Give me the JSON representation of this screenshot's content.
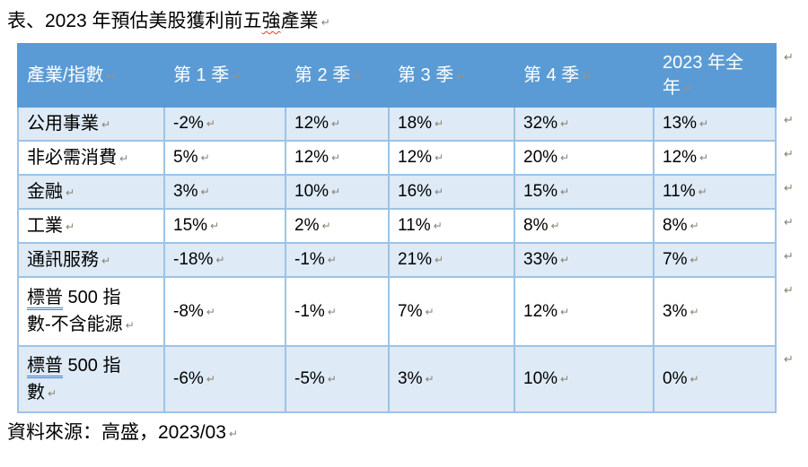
{
  "title": {
    "prefix": "表、2023 年預估美股獲利前五",
    "misspelled": "強",
    "suffix": "產業"
  },
  "marks": {
    "paragraph": "↵"
  },
  "table": {
    "headers": [
      "產業/指數",
      "第 1 季",
      "第 2 季",
      "第 3 季",
      "第 4 季",
      "2023 年全\n年"
    ],
    "rows": [
      {
        "label": "公用事業",
        "values": [
          "-2%",
          "12%",
          "18%",
          "32%",
          "13%"
        ]
      },
      {
        "label": "非必需消費",
        "values": [
          "5%",
          "12%",
          "12%",
          "20%",
          "12%"
        ]
      },
      {
        "label": "金融",
        "values": [
          "3%",
          "10%",
          "16%",
          "15%",
          "11%"
        ]
      },
      {
        "label": "工業",
        "values": [
          "15%",
          "2%",
          "11%",
          "8%",
          "8%"
        ]
      },
      {
        "label": "通訊服務",
        "values": [
          "-18%",
          "-1%",
          "21%",
          "33%",
          "7%"
        ]
      },
      {
        "label_underline": "標普",
        "label": " 500 指\n數-不含能源",
        "values": [
          "-8%",
          "-1%",
          "7%",
          "12%",
          "3%"
        ]
      },
      {
        "label_underline": "標普",
        "label": " 500 指\n數",
        "values": [
          "-6%",
          "-5%",
          "3%",
          "10%",
          "0%"
        ]
      }
    ]
  },
  "source": {
    "text": "資料來源：高盛，2023/03"
  },
  "colors": {
    "header_bg": "#5B9BD5",
    "band_bg": "#DEEAF6",
    "border": "#9DC3E6",
    "header_text": "#FFFFFF",
    "spellcheck_red": "#E03C31",
    "grammar_blue": "#3E7FD9",
    "mark_gray": "#8A8073"
  }
}
